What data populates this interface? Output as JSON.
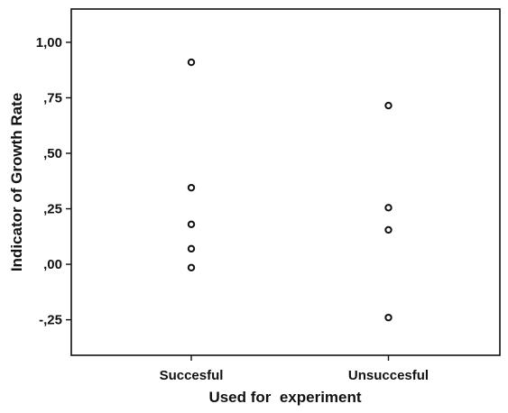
{
  "chart_data": {
    "type": "scatter",
    "title": "",
    "xlabel": "Used for  experiment",
    "ylabel": "Indicator of Growth Rate",
    "categories": [
      "Succesful",
      "Unsuccesful"
    ],
    "series": [
      {
        "points": [
          {
            "x": "Succesful",
            "y": 0.91
          },
          {
            "x": "Succesful",
            "y": 0.345
          },
          {
            "x": "Succesful",
            "y": 0.18
          },
          {
            "x": "Succesful",
            "y": 0.07
          },
          {
            "x": "Succesful",
            "y": -0.015
          },
          {
            "x": "Unsuccesful",
            "y": 0.715
          },
          {
            "x": "Unsuccesful",
            "y": 0.255
          },
          {
            "x": "Unsuccesful",
            "y": 0.155
          },
          {
            "x": "Unsuccesful",
            "y": -0.24
          }
        ]
      }
    ],
    "ylim": [
      -0.41,
      1.15
    ],
    "yticks": [
      1.0,
      0.75,
      0.5,
      0.25,
      0.0,
      -0.25
    ],
    "ytick_labels": [
      "1,00",
      ",75",
      ",50",
      ",25",
      ",00",
      "-,25"
    ],
    "grid": false,
    "legend": "none",
    "colors": {
      "marker": "#111111",
      "axis": "#111111",
      "background": "#ffffff"
    }
  }
}
